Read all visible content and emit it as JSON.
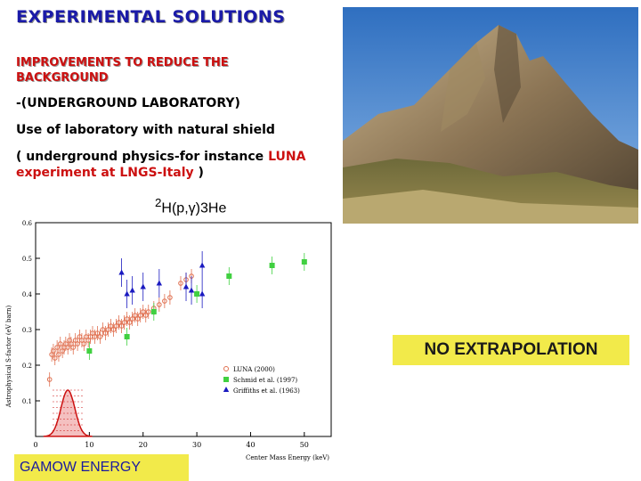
{
  "slide": {
    "title": "EXPERIMENTAL  SOLUTIONS",
    "subtitle": "IMPROVEMENTS TO REDUCE THE BACKGROUND",
    "line1": "-(UNDERGROUND LABORATORY)",
    "line2": "Use of laboratory with natural shield",
    "line3_black": "( underground physics-for instance ",
    "line3_red": "LUNA",
    "line4_red": "experiment at LNGS-Italy",
    "line4_black": " )",
    "reaction_pre": "2",
    "reaction_main": "H(p,",
    "reaction_gamma": "γ",
    "reaction_post_sup": ")3",
    "reaction_he": "He",
    "no_extrapolation": "NO EXTRAPOLATION",
    "gamow": "GAMOW ENERGY"
  },
  "colors": {
    "title": "#1a1aa8",
    "red_text": "#cc1010",
    "highlight": "#f2ea4a",
    "luna": "#e07050",
    "schmid": "#40d040",
    "griffiths": "#1a1ac0",
    "gamow_peak": "#cc1010"
  },
  "photo": {
    "description_icon": "mountain-photo"
  },
  "chart_data": {
    "type": "scatter",
    "title": "",
    "xlabel": "Center Mass Energy (keV)",
    "ylabel": "Astrophysical S-factor (eV barn)",
    "xlim": [
      0,
      55
    ],
    "ylim": [
      0,
      0.6
    ],
    "x_ticks": [
      "0",
      "10",
      "20",
      "30",
      "40",
      "50"
    ],
    "y_ticks": [
      "0.1",
      "0.2",
      "0.3",
      "0.4",
      "0.5",
      "0.6"
    ],
    "x_tick_values": [
      0,
      10,
      20,
      30,
      40,
      50
    ],
    "y_tick_values": [
      0.1,
      0.2,
      0.3,
      0.4,
      0.5,
      0.6
    ],
    "legend_position": "bottom-right",
    "series": [
      {
        "name": "LUNA (2000)",
        "marker": "circle-open",
        "points": [
          [
            2.6,
            0.16
          ],
          [
            3.0,
            0.23
          ],
          [
            3.3,
            0.24
          ],
          [
            3.6,
            0.22
          ],
          [
            4.0,
            0.25
          ],
          [
            4.3,
            0.23
          ],
          [
            4.6,
            0.26
          ],
          [
            5.0,
            0.24
          ],
          [
            5.3,
            0.25
          ],
          [
            5.6,
            0.26
          ],
          [
            6.0,
            0.25
          ],
          [
            6.3,
            0.27
          ],
          [
            6.6,
            0.26
          ],
          [
            7.0,
            0.25
          ],
          [
            7.4,
            0.27
          ],
          [
            7.8,
            0.26
          ],
          [
            8.2,
            0.28
          ],
          [
            8.6,
            0.27
          ],
          [
            9.0,
            0.26
          ],
          [
            9.4,
            0.28
          ],
          [
            9.8,
            0.27
          ],
          [
            10.2,
            0.28
          ],
          [
            10.6,
            0.29
          ],
          [
            11.0,
            0.28
          ],
          [
            11.5,
            0.29
          ],
          [
            12.0,
            0.28
          ],
          [
            12.5,
            0.3
          ],
          [
            13.0,
            0.29
          ],
          [
            13.5,
            0.3
          ],
          [
            14.0,
            0.31
          ],
          [
            14.5,
            0.3
          ],
          [
            15.0,
            0.31
          ],
          [
            15.5,
            0.32
          ],
          [
            16.0,
            0.31
          ],
          [
            16.5,
            0.32
          ],
          [
            17.0,
            0.33
          ],
          [
            17.5,
            0.32
          ],
          [
            18.0,
            0.33
          ],
          [
            18.5,
            0.34
          ],
          [
            19.0,
            0.33
          ],
          [
            19.5,
            0.34
          ],
          [
            20.0,
            0.35
          ],
          [
            20.5,
            0.34
          ],
          [
            21.0,
            0.35
          ],
          [
            22.0,
            0.36
          ],
          [
            23.0,
            0.37
          ],
          [
            24.0,
            0.38
          ],
          [
            25.0,
            0.39
          ],
          [
            27.0,
            0.43
          ],
          [
            28.0,
            0.44
          ],
          [
            29.0,
            0.45
          ]
        ]
      },
      {
        "name": "Schmid et al. (1997)",
        "marker": "square",
        "points": [
          [
            10,
            0.24
          ],
          [
            17,
            0.28
          ],
          [
            22,
            0.35
          ],
          [
            30,
            0.4
          ],
          [
            36,
            0.45
          ],
          [
            44,
            0.48
          ],
          [
            50,
            0.49
          ]
        ]
      },
      {
        "name": "Griffiths et al. (1963)",
        "marker": "triangle",
        "points": [
          [
            16,
            0.46
          ],
          [
            17,
            0.4
          ],
          [
            18,
            0.41
          ],
          [
            20,
            0.42
          ],
          [
            23,
            0.43
          ],
          [
            28,
            0.42
          ],
          [
            29,
            0.41
          ],
          [
            31,
            0.4
          ],
          [
            31,
            0.48
          ]
        ]
      }
    ],
    "gamow_peak": {
      "center_keV": 6.0,
      "width_keV": 1.3,
      "peak_value": 0.13
    }
  }
}
